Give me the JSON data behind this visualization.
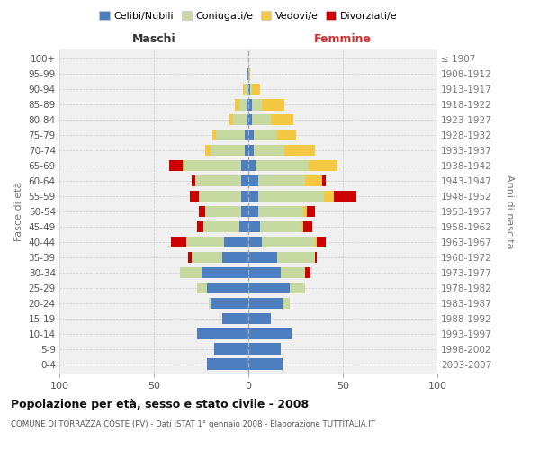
{
  "age_groups": [
    "0-4",
    "5-9",
    "10-14",
    "15-19",
    "20-24",
    "25-29",
    "30-34",
    "35-39",
    "40-44",
    "45-49",
    "50-54",
    "55-59",
    "60-64",
    "65-69",
    "70-74",
    "75-79",
    "80-84",
    "85-89",
    "90-94",
    "95-99",
    "100+"
  ],
  "birth_years": [
    "2003-2007",
    "1998-2002",
    "1993-1997",
    "1988-1992",
    "1983-1987",
    "1978-1982",
    "1973-1977",
    "1968-1972",
    "1963-1967",
    "1958-1962",
    "1953-1957",
    "1948-1952",
    "1943-1947",
    "1938-1942",
    "1933-1937",
    "1928-1932",
    "1923-1927",
    "1918-1922",
    "1913-1917",
    "1908-1912",
    "≤ 1907"
  ],
  "males_celibi": [
    22,
    18,
    27,
    14,
    20,
    22,
    25,
    14,
    13,
    5,
    4,
    4,
    4,
    4,
    2,
    2,
    1,
    1,
    0,
    1,
    0
  ],
  "males_coniugati": [
    0,
    0,
    0,
    0,
    1,
    5,
    11,
    16,
    20,
    19,
    19,
    22,
    24,
    30,
    18,
    15,
    7,
    4,
    2,
    0,
    0
  ],
  "males_vedovi": [
    0,
    0,
    0,
    0,
    0,
    0,
    0,
    0,
    0,
    0,
    0,
    0,
    0,
    1,
    3,
    2,
    2,
    2,
    1,
    0,
    0
  ],
  "males_divorziati": [
    0,
    0,
    0,
    0,
    0,
    0,
    0,
    2,
    8,
    3,
    3,
    5,
    2,
    7,
    0,
    0,
    0,
    0,
    0,
    0,
    0
  ],
  "females_celibi": [
    18,
    17,
    23,
    12,
    18,
    22,
    17,
    15,
    7,
    6,
    5,
    5,
    5,
    4,
    3,
    3,
    2,
    2,
    1,
    0,
    0
  ],
  "females_coniugati": [
    0,
    0,
    0,
    0,
    4,
    8,
    13,
    20,
    28,
    22,
    24,
    35,
    25,
    28,
    16,
    12,
    10,
    5,
    1,
    0,
    0
  ],
  "females_vedovi": [
    0,
    0,
    0,
    0,
    0,
    0,
    0,
    0,
    1,
    1,
    2,
    5,
    9,
    15,
    16,
    10,
    12,
    12,
    4,
    1,
    0
  ],
  "females_divorziati": [
    0,
    0,
    0,
    0,
    0,
    0,
    3,
    1,
    5,
    5,
    4,
    12,
    2,
    0,
    0,
    0,
    0,
    0,
    0,
    0,
    0
  ],
  "colors": {
    "celibi": "#4d7ebf",
    "coniugati": "#c5d9a0",
    "vedovi": "#f5c842",
    "divorziati": "#cc0000"
  },
  "title": "Popolazione per età, sesso e stato civile - 2008",
  "subtitle": "COMUNE DI TORRAZZA COSTE (PV) - Dati ISTAT 1° gennaio 2008 - Elaborazione TUTTITALIA.IT",
  "ylabel": "Fasce di età",
  "ylabel_right": "Anni di nascita",
  "xlabel_left": "Maschi",
  "xlabel_right": "Femmine",
  "xlim": 100,
  "legend_labels": [
    "Celibi/Nubili",
    "Coniugati/e",
    "Vedovi/e",
    "Divorziati/e"
  ],
  "bg_color": "#f0f0f0",
  "bar_height": 0.75
}
